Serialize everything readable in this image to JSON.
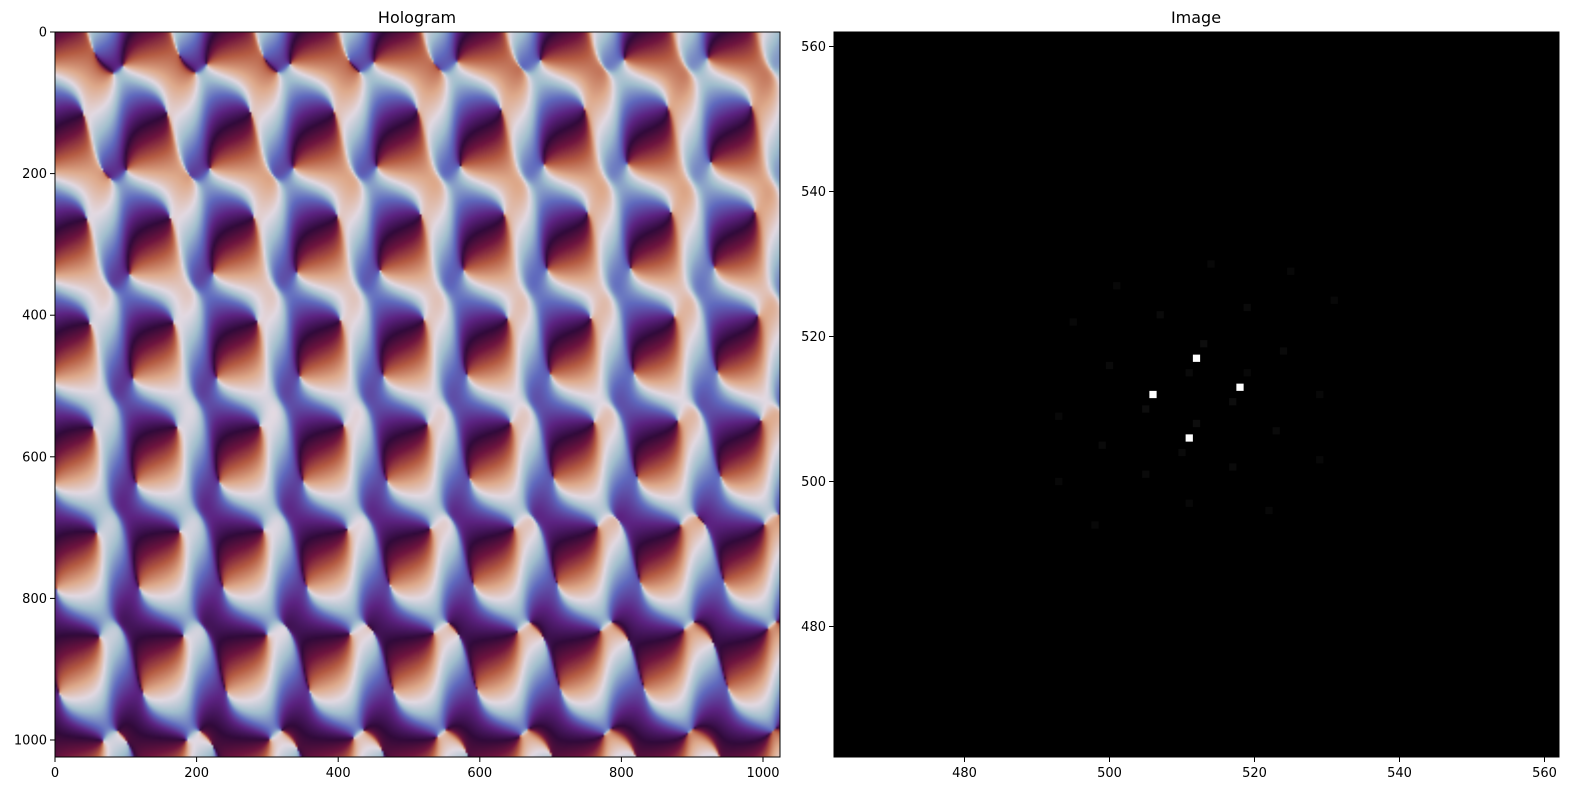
{
  "chart_data": [
    {
      "type": "heatmap",
      "title": "Hologram",
      "colormap": "twilight_shifted",
      "xlim": [
        0,
        1024
      ],
      "ylim": [
        1024,
        0
      ],
      "xticks": [
        0,
        200,
        400,
        600,
        800,
        1000
      ],
      "yticks": [
        0,
        200,
        400,
        600,
        800,
        1000
      ],
      "xlabel": "",
      "ylabel": ""
    },
    {
      "type": "heatmap",
      "title": "Image",
      "colormap": "gray",
      "background": "#000000",
      "xlim": [
        462,
        562
      ],
      "ylim": [
        462,
        562
      ],
      "xticks": [
        480,
        500,
        520,
        540,
        560
      ],
      "yticks": [
        480,
        500,
        520,
        540,
        560
      ],
      "xlabel": "",
      "ylabel": "",
      "bright_points": [
        {
          "x": 512,
          "y": 517,
          "v": 1.0
        },
        {
          "x": 518,
          "y": 513,
          "v": 1.0
        },
        {
          "x": 506,
          "y": 512,
          "v": 1.0
        },
        {
          "x": 511,
          "y": 506,
          "v": 1.0
        }
      ],
      "faint_points": [
        {
          "x": 514,
          "y": 530,
          "v": 0.03
        },
        {
          "x": 525,
          "y": 529,
          "v": 0.03
        },
        {
          "x": 501,
          "y": 527,
          "v": 0.03
        },
        {
          "x": 531,
          "y": 525,
          "v": 0.03
        },
        {
          "x": 519,
          "y": 524,
          "v": 0.04
        },
        {
          "x": 507,
          "y": 523,
          "v": 0.04
        },
        {
          "x": 495,
          "y": 522,
          "v": 0.03
        },
        {
          "x": 513,
          "y": 519,
          "v": 0.05
        },
        {
          "x": 524,
          "y": 518,
          "v": 0.04
        },
        {
          "x": 500,
          "y": 516,
          "v": 0.04
        },
        {
          "x": 511,
          "y": 515,
          "v": 0.04
        },
        {
          "x": 519,
          "y": 515,
          "v": 0.03
        },
        {
          "x": 529,
          "y": 512,
          "v": 0.03
        },
        {
          "x": 517,
          "y": 511,
          "v": 0.05
        },
        {
          "x": 505,
          "y": 510,
          "v": 0.05
        },
        {
          "x": 493,
          "y": 509,
          "v": 0.03
        },
        {
          "x": 512,
          "y": 508,
          "v": 0.05
        },
        {
          "x": 523,
          "y": 507,
          "v": 0.04
        },
        {
          "x": 499,
          "y": 505,
          "v": 0.04
        },
        {
          "x": 510,
          "y": 504,
          "v": 0.04
        },
        {
          "x": 529,
          "y": 503,
          "v": 0.03
        },
        {
          "x": 517,
          "y": 502,
          "v": 0.04
        },
        {
          "x": 505,
          "y": 501,
          "v": 0.04
        },
        {
          "x": 493,
          "y": 500,
          "v": 0.03
        },
        {
          "x": 511,
          "y": 497,
          "v": 0.03
        },
        {
          "x": 522,
          "y": 496,
          "v": 0.03
        },
        {
          "x": 498,
          "y": 494,
          "v": 0.03
        }
      ]
    }
  ]
}
